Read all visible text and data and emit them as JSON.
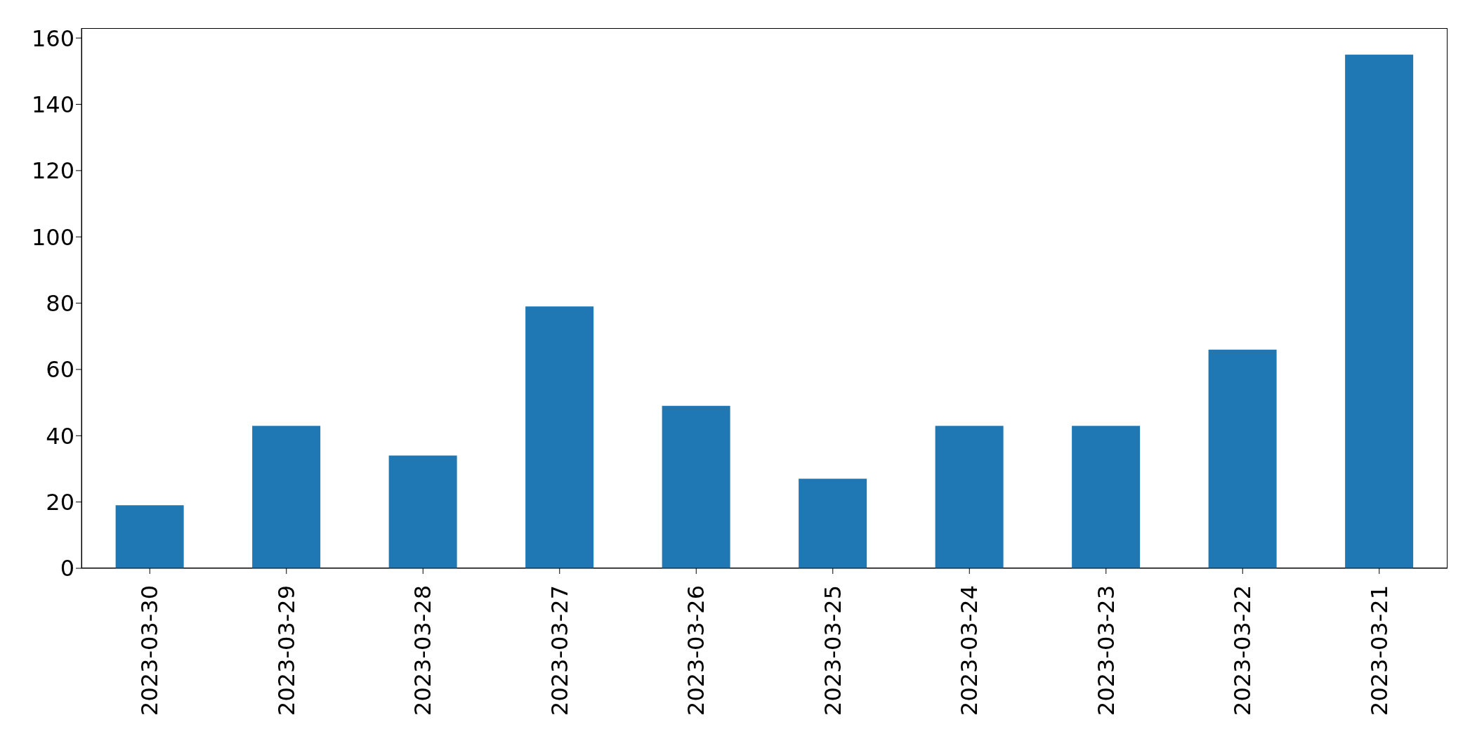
{
  "chart_data": {
    "type": "bar",
    "categories": [
      "2023-03-30",
      "2023-03-29",
      "2023-03-28",
      "2023-03-27",
      "2023-03-26",
      "2023-03-25",
      "2023-03-24",
      "2023-03-23",
      "2023-03-22",
      "2023-03-21"
    ],
    "values": [
      19,
      43,
      34,
      79,
      49,
      27,
      43,
      43,
      66,
      155
    ],
    "color": "#1f77b4",
    "ylim": [
      0,
      163
    ],
    "yticks": [
      0,
      20,
      40,
      60,
      80,
      100,
      120,
      140,
      160
    ],
    "grid": false
  }
}
